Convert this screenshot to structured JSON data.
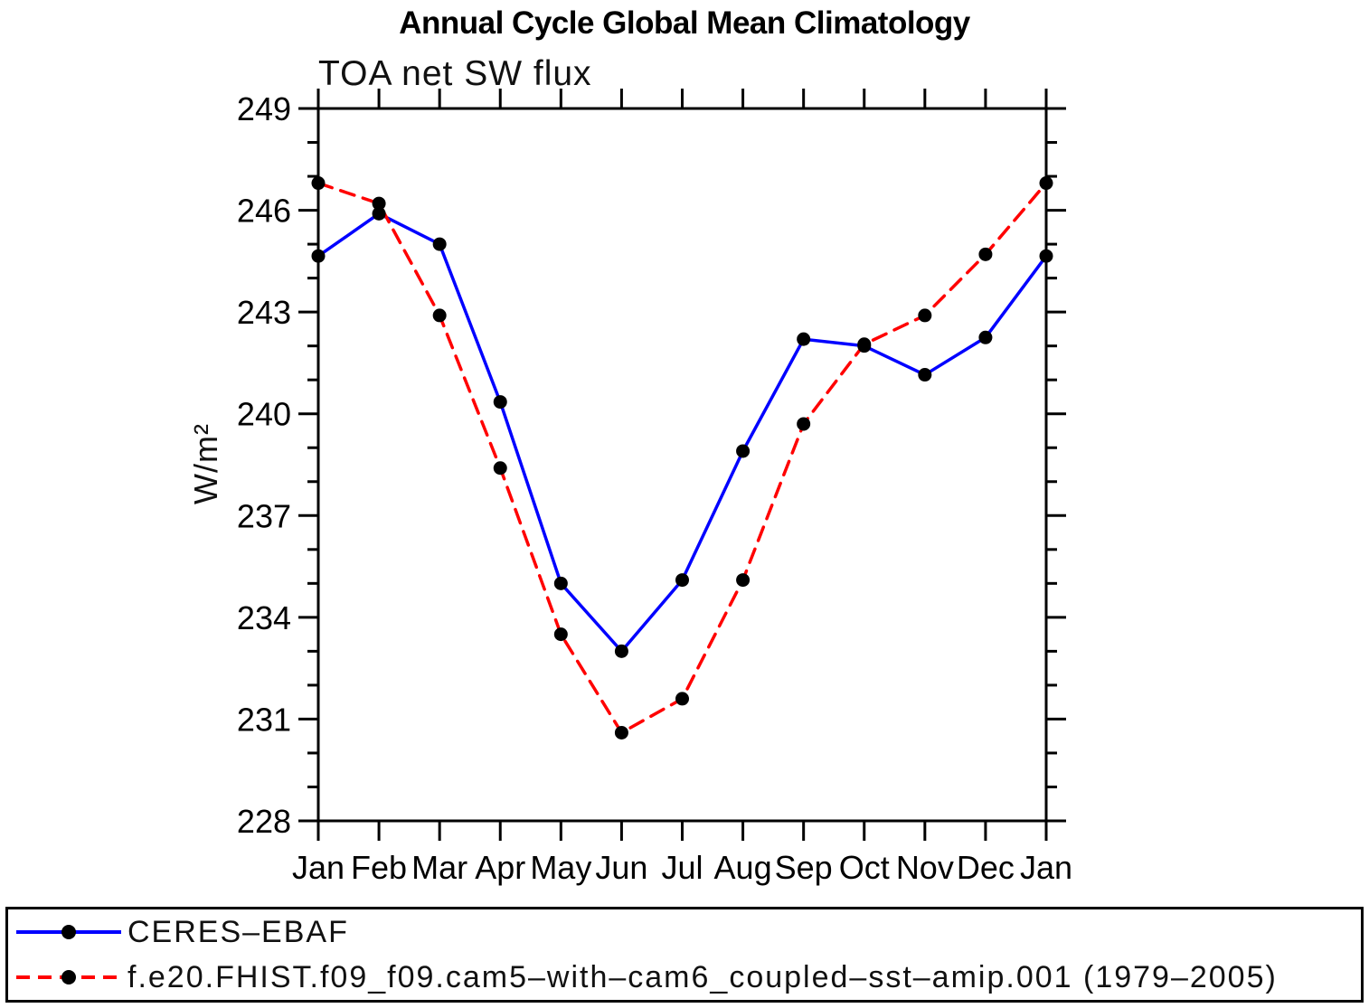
{
  "title": "Annual Cycle Global Mean Climatology",
  "subtitle": "TOA net SW flux",
  "ylabel": "W/m²",
  "legend": {
    "items": [
      {
        "label": "CERES–EBAF",
        "color": "#0000ff",
        "style": "solid",
        "marker_color": "#000000"
      },
      {
        "label": "f.e20.FHIST.f09_f09.cam5–with–cam6_coupled–sst–amip.001 (1979–2005)",
        "color": "#ff0000",
        "style": "dashed",
        "marker_color": "#000000"
      }
    ]
  },
  "chart_data": {
    "type": "line",
    "title": "Annual Cycle Global Mean Climatology",
    "subtitle": "TOA net SW flux",
    "xlabel": "",
    "ylabel": "W/m²",
    "categories": [
      "Jan",
      "Feb",
      "Mar",
      "Apr",
      "May",
      "Jun",
      "Jul",
      "Aug",
      "Sep",
      "Oct",
      "Nov",
      "Dec",
      "Jan"
    ],
    "series": [
      {
        "name": "CERES–EBAF",
        "color": "#0000ff",
        "line_style": "solid",
        "marker": "circle",
        "marker_color": "#000000",
        "values": [
          244.65,
          245.9,
          245.0,
          240.35,
          235.0,
          233.0,
          235.1,
          238.9,
          242.2,
          242.0,
          241.15,
          242.25,
          244.65
        ]
      },
      {
        "name": "f.e20.FHIST.f09_f09.cam5–with–cam6_coupled–sst–amip.001 (1979–2005)",
        "color": "#ff0000",
        "line_style": "dashed",
        "marker": "circle",
        "marker_color": "#000000",
        "values": [
          246.8,
          246.2,
          242.9,
          238.4,
          233.5,
          230.6,
          231.6,
          235.1,
          239.7,
          242.05,
          242.9,
          244.7,
          246.8
        ]
      }
    ],
    "ylim": [
      228,
      249
    ],
    "yticks_major": [
      228,
      231,
      234,
      237,
      240,
      243,
      246,
      249
    ],
    "ytick_minor_step": 1,
    "grid": false,
    "legend_position": "bottom"
  }
}
